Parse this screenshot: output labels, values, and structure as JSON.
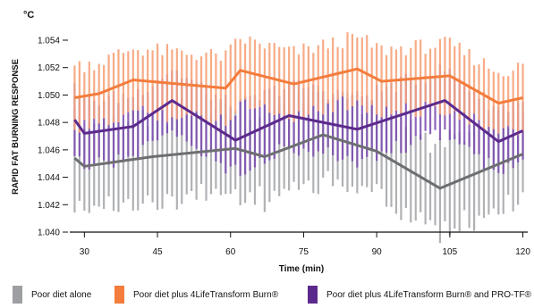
{
  "chart_data": {
    "type": "line",
    "unit_label": "°C",
    "ylabel": "RAPID FAT BURNING RESPONSE",
    "xlabel": "Time (min)",
    "xlim": [
      27,
      121
    ],
    "ylim": [
      1.04,
      1.055
    ],
    "x_ticks": [
      30,
      45,
      60,
      75,
      90,
      105,
      120
    ],
    "y_ticks": [
      1.04,
      1.042,
      1.044,
      1.046,
      1.048,
      1.05,
      1.052,
      1.054
    ],
    "y_tick_labels": [
      "1.040",
      "1.042",
      "1.044",
      "1.046",
      "1.048",
      "1.050",
      "1.052",
      "1.054"
    ],
    "grid": false,
    "error_bars": "vertical bar per minute around each series",
    "series": [
      {
        "name": "Poor diet alone",
        "color": "#6d6e71",
        "band_color": "#a7a9ac",
        "band_half_width": 0.0032,
        "points": [
          [
            28,
            1.0454
          ],
          [
            30,
            1.0448
          ],
          [
            44,
            1.0455
          ],
          [
            61,
            1.0461
          ],
          [
            67,
            1.0455
          ],
          [
            79,
            1.0471
          ],
          [
            90,
            1.0459
          ],
          [
            103,
            1.0432
          ],
          [
            120,
            1.0457
          ]
        ]
      },
      {
        "name": "Poor diet plus 4LifeTransform Burn®",
        "color": "#f47c3c",
        "band_color": "#f7a37a",
        "band_half_width": 0.0023,
        "points": [
          [
            28,
            1.0498
          ],
          [
            33,
            1.0501
          ],
          [
            40,
            1.0511
          ],
          [
            59,
            1.0505
          ],
          [
            62,
            1.0518
          ],
          [
            73,
            1.0508
          ],
          [
            86,
            1.0519
          ],
          [
            91,
            1.051
          ],
          [
            105,
            1.0514
          ],
          [
            115,
            1.0494
          ],
          [
            120,
            1.0498
          ]
        ]
      },
      {
        "name": "Poor diet plus 4LifeTransform Burn® and PRO-TF®",
        "color": "#5c2a8c",
        "band_color": "#7a4ab0",
        "band_half_width": 0.0023,
        "points": [
          [
            28,
            1.0482
          ],
          [
            30,
            1.0472
          ],
          [
            40,
            1.0477
          ],
          [
            48,
            1.0496
          ],
          [
            61,
            1.0467
          ],
          [
            72,
            1.0485
          ],
          [
            86,
            1.0475
          ],
          [
            104,
            1.0496
          ],
          [
            115,
            1.0466
          ],
          [
            120,
            1.0474
          ]
        ]
      }
    ],
    "legend_position": "bottom"
  }
}
